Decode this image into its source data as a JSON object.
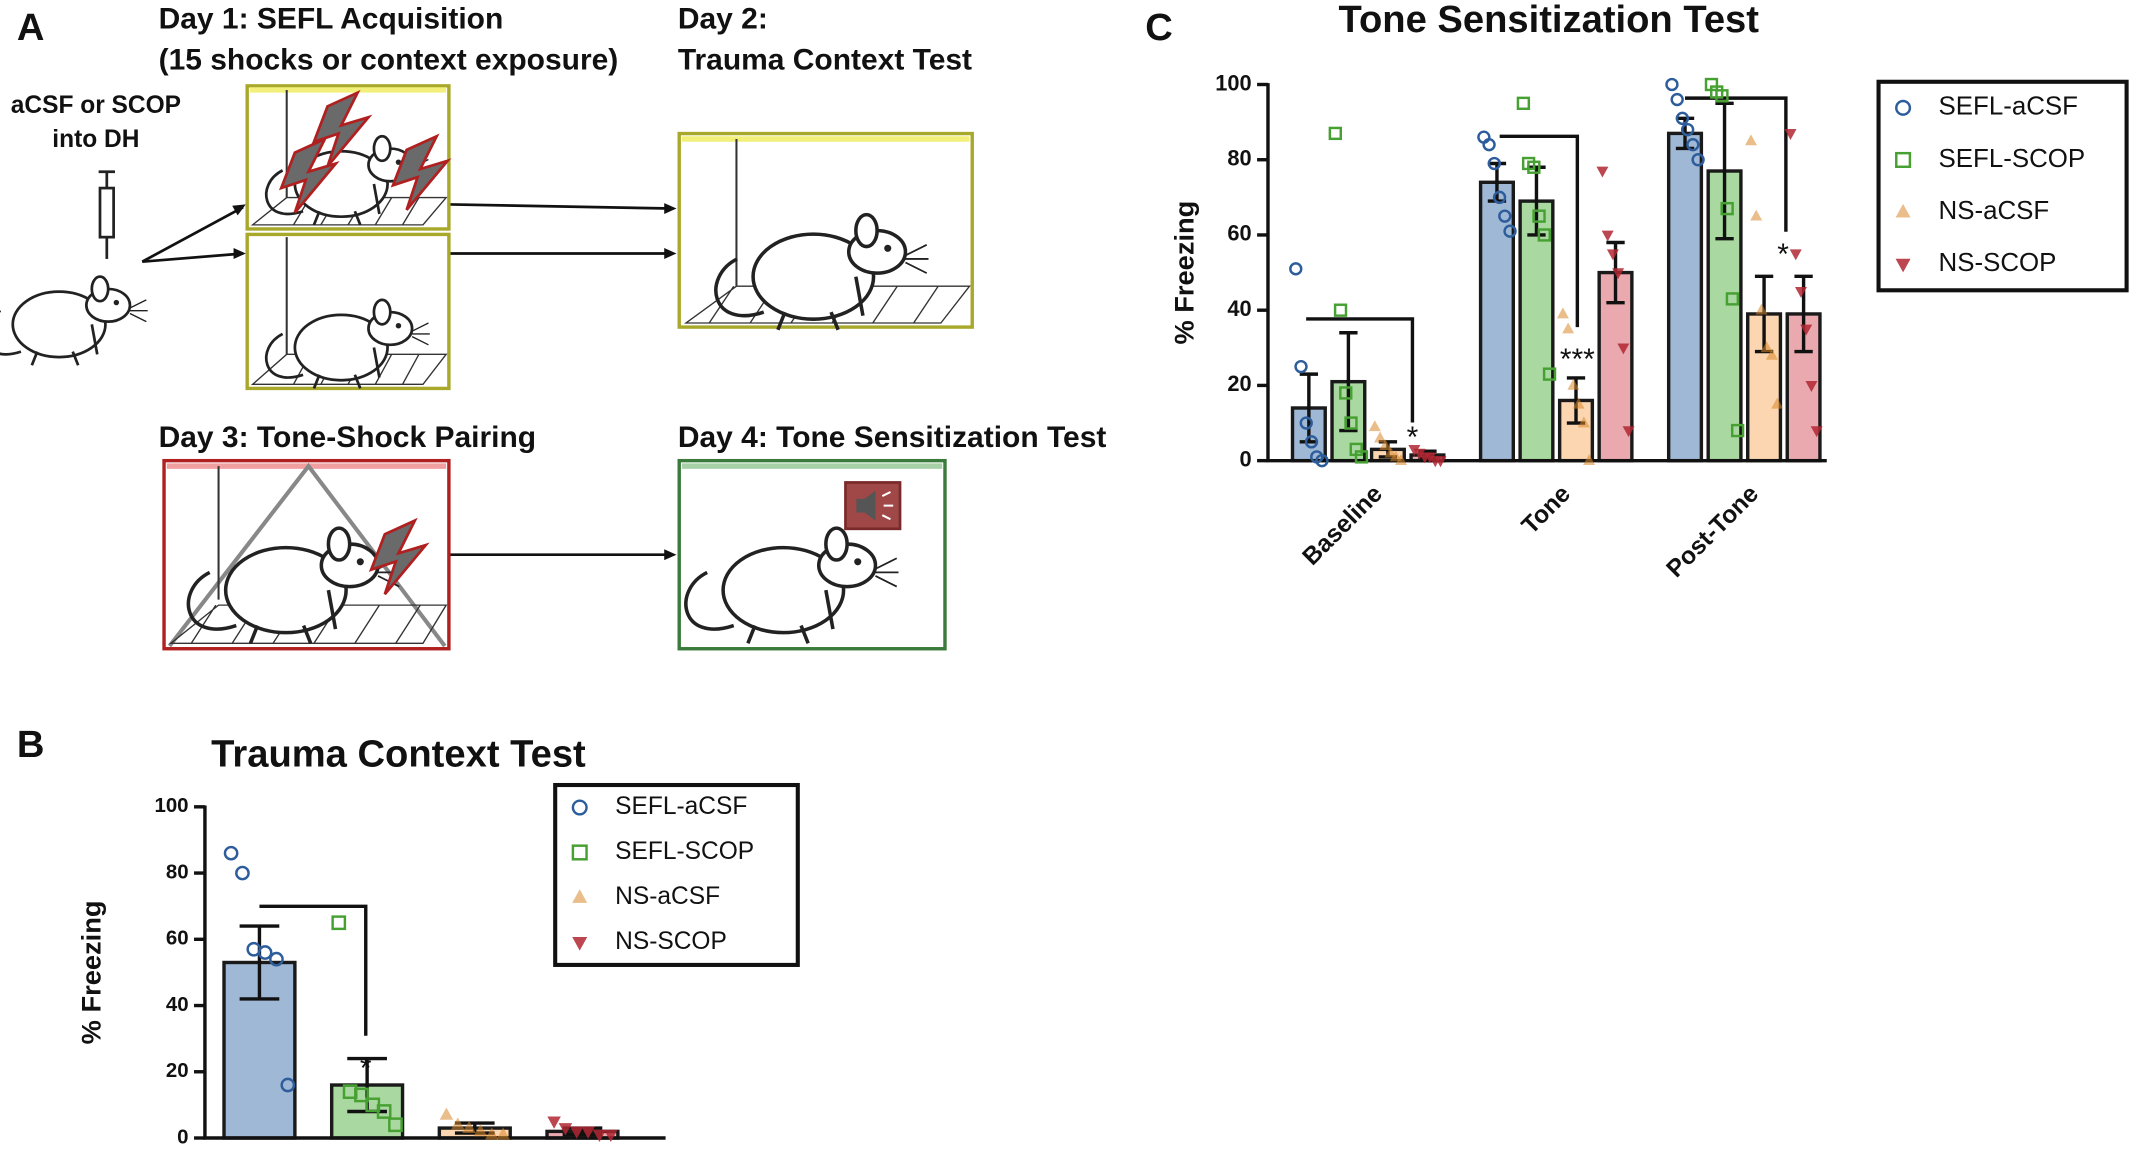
{
  "panel_labels": [
    "A",
    "B",
    "C"
  ],
  "diagram": {
    "day1": [
      "Day 1: SEFL Acquisition",
      "(15 shocks or context exposure)"
    ],
    "day2": [
      "Day 2:",
      "Trauma Context Test"
    ],
    "injection": [
      "aCSF or SCOP",
      "into DH"
    ],
    "day3": "Day 3: Tone-Shock Pairing",
    "day4": "Day 4: Tone Sensitization Test"
  },
  "chart_data": [
    {
      "type": "bar",
      "title": "Trauma Context Test",
      "ylabel": "% Freezing",
      "categories": [
        null
      ],
      "ylim": [
        0,
        100
      ],
      "yticks": [
        0,
        20,
        40,
        60,
        80,
        100
      ],
      "legend": "top-right",
      "annotations": [
        "*"
      ],
      "series": [
        {
          "name": "SEFL-aCSF",
          "color": "#2e5d9c",
          "bar_color": "#9fb8d6",
          "marker": "circle",
          "values": [
            53
          ],
          "errors": [
            11
          ],
          "points": [
            [
              86,
              80,
              57,
              56,
              54,
              16
            ]
          ]
        },
        {
          "name": "SEFL-SCOP",
          "color": "#46a032",
          "bar_color": "#a9d8a0",
          "marker": "square",
          "values": [
            16
          ],
          "errors": [
            8
          ],
          "points": [
            [
              65,
              14,
              13,
              10,
              8,
              4
            ]
          ]
        },
        {
          "name": "NS-aCSF",
          "color": "#d8892a",
          "bar_color": "#fcd6b0",
          "marker": "triangle-up",
          "values": [
            3
          ],
          "errors": [
            1.5
          ],
          "points": [
            [
              7,
              4,
              3,
              2,
              1,
              1
            ]
          ]
        },
        {
          "name": "NS-SCOP",
          "color": "#b02733",
          "bar_color": "#eaa9ae",
          "marker": "triangle-down",
          "values": [
            2
          ],
          "errors": [
            1
          ],
          "points": [
            [
              5,
              3,
              2,
              2,
              1,
              1
            ]
          ]
        }
      ]
    },
    {
      "type": "bar",
      "title": "Tone Sensitization Test",
      "ylabel": "% Freezing",
      "categories": [
        "Baseline",
        "Tone",
        "Post-Tone"
      ],
      "ylim": [
        0,
        100
      ],
      "yticks": [
        0,
        20,
        40,
        60,
        80,
        100
      ],
      "legend": "right",
      "annotations": [
        "*",
        "***",
        "*"
      ],
      "series": [
        {
          "name": "SEFL-aCSF",
          "color": "#2e5d9c",
          "bar_color": "#9fb8d6",
          "marker": "circle",
          "values": [
            14,
            74,
            87
          ],
          "errors": [
            9,
            5,
            4
          ],
          "points": [
            [
              51,
              25,
              10,
              5,
              1,
              0
            ],
            [
              86,
              84,
              79,
              70,
              65,
              61
            ],
            [
              100,
              96,
              91,
              88,
              84,
              80
            ]
          ]
        },
        {
          "name": "SEFL-SCOP",
          "color": "#46a032",
          "bar_color": "#a9d8a0",
          "marker": "square",
          "values": [
            21,
            69,
            77
          ],
          "errors": [
            13,
            9,
            18
          ],
          "points": [
            [
              87,
              40,
              18,
              10,
              3,
              1
            ],
            [
              95,
              79,
              78,
              65,
              60,
              23
            ],
            [
              100,
              98,
              97,
              67,
              43,
              8
            ]
          ]
        },
        {
          "name": "NS-aCSF",
          "color": "#d8892a",
          "bar_color": "#fcd6b0",
          "marker": "triangle-up",
          "values": [
            3,
            16,
            39
          ],
          "errors": [
            2,
            6,
            10
          ],
          "points": [
            [
              9,
              6,
              4,
              2,
              1,
              0
            ],
            [
              39,
              35,
              20,
              15,
              10,
              0
            ],
            [
              85,
              65,
              40,
              30,
              28,
              15
            ]
          ]
        },
        {
          "name": "NS-SCOP",
          "color": "#b02733",
          "bar_color": "#eaa9ae",
          "marker": "triangle-down",
          "values": [
            1.5,
            50,
            39
          ],
          "errors": [
            1,
            8,
            10
          ],
          "points": [
            [
              3,
              2,
              1,
              1,
              0,
              0
            ],
            [
              77,
              60,
              55,
              50,
              30,
              8
            ],
            [
              87,
              55,
              45,
              35,
              20,
              8
            ]
          ]
        }
      ]
    }
  ]
}
